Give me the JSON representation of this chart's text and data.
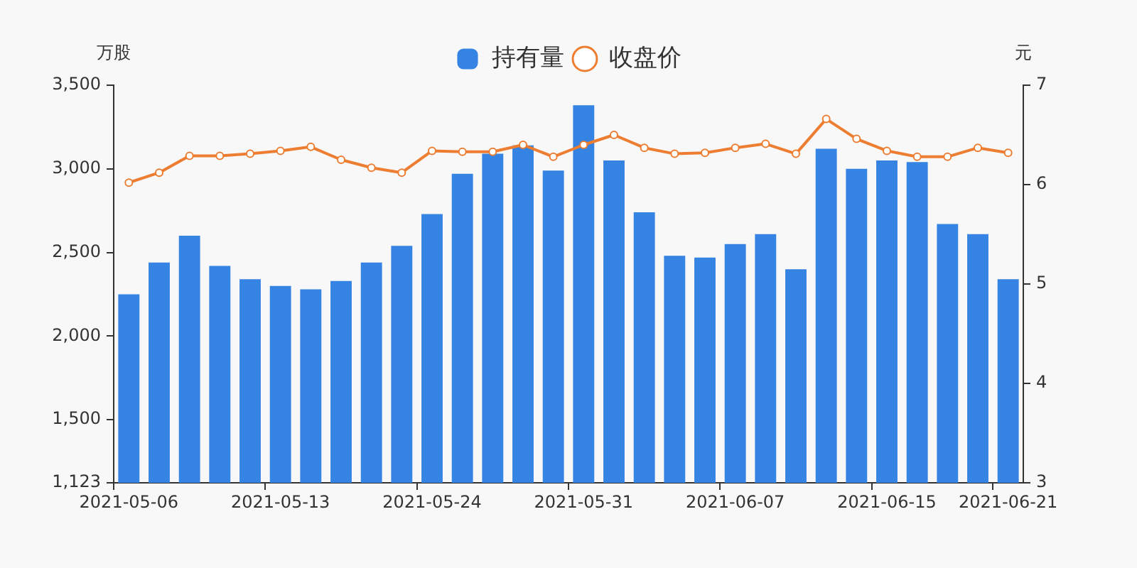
{
  "chart_data": {
    "type": "bar",
    "ylabel": "万股",
    "y2label": "元",
    "categories": [
      "2021-05-06",
      null,
      null,
      null,
      null,
      "2021-05-13",
      null,
      null,
      null,
      null,
      "2021-05-24",
      null,
      null,
      null,
      null,
      "2021-05-31",
      null,
      null,
      null,
      null,
      "2021-06-07",
      null,
      null,
      null,
      null,
      "2021-06-15",
      null,
      null,
      null,
      "2021-06-21"
    ],
    "series": [
      {
        "name": "持有量",
        "color": "#3583e2",
        "values": [
          2250,
          2440,
          2600,
          2420,
          2340,
          2300,
          2280,
          2330,
          2440,
          2540,
          2730,
          2970,
          3090,
          3140,
          2990,
          3380,
          3050,
          2740,
          2480,
          2470,
          2550,
          2610,
          2400,
          3120,
          3000,
          3050,
          3040,
          2670,
          2610,
          2340
        ]
      },
      {
        "name": "收盘价",
        "type": "line",
        "axis": "y2",
        "color": "#ed7d31",
        "values": [
          6.02,
          6.12,
          6.29,
          6.29,
          6.31,
          6.34,
          6.38,
          6.25,
          6.17,
          6.12,
          6.34,
          6.33,
          6.33,
          6.4,
          6.28,
          6.4,
          6.5,
          6.37,
          6.31,
          6.32,
          6.37,
          6.41,
          6.31,
          6.66,
          6.46,
          6.34,
          6.28,
          6.28,
          6.37,
          6.32
        ]
      }
    ],
    "ylim": [
      1123,
      3500
    ],
    "yticks": [
      {
        "value": 1123,
        "label": "1,123"
      },
      {
        "value": 1500,
        "label": "1,500"
      },
      {
        "value": 2000,
        "label": "2,000"
      },
      {
        "value": 2500,
        "label": "2,500"
      },
      {
        "value": 3000,
        "label": "3,000"
      },
      {
        "value": 3500,
        "label": "3,500"
      }
    ],
    "y2lim": [
      3,
      7
    ],
    "y2ticks": [
      3,
      4,
      5,
      6,
      7
    ],
    "legend": "top",
    "marker": "circle",
    "grid": false
  }
}
